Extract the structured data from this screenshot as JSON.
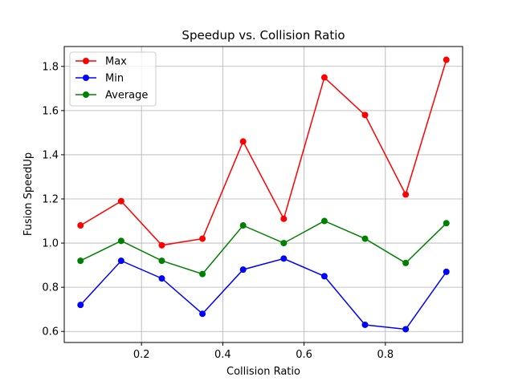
{
  "chart_data": {
    "type": "line",
    "title": "Speedup vs. Collision Ratio",
    "xlabel": "Collision Ratio",
    "ylabel": "Fusion SpeedUp",
    "x": [
      0.05,
      0.15,
      0.25,
      0.35,
      0.45,
      0.55,
      0.65,
      0.75,
      0.85,
      0.95
    ],
    "xlim": [
      0.01,
      0.99
    ],
    "ylim": [
      0.55,
      1.89
    ],
    "xticks": [
      0.2,
      0.4,
      0.6,
      0.8
    ],
    "xtick_labels": [
      "0.2",
      "0.4",
      "0.6",
      "0.8"
    ],
    "yticks": [
      0.6,
      0.8,
      1.0,
      1.2,
      1.4,
      1.6,
      1.8
    ],
    "ytick_labels": [
      "0.6",
      "0.8",
      "1.0",
      "1.2",
      "1.4",
      "1.6",
      "1.8"
    ],
    "grid": true,
    "legend_position": "top-left",
    "series": [
      {
        "name": "Max",
        "color": "#ff0000",
        "marker": "circle",
        "values": [
          1.08,
          1.19,
          0.99,
          1.02,
          1.46,
          1.11,
          1.75,
          1.58,
          1.22,
          1.83
        ]
      },
      {
        "name": "Min",
        "color": "#0000ff",
        "marker": "circle",
        "values": [
          0.72,
          0.92,
          0.84,
          0.68,
          0.88,
          0.93,
          0.85,
          0.63,
          0.61,
          0.87
        ]
      },
      {
        "name": "Average",
        "color": "#008000",
        "marker": "circle",
        "values": [
          0.92,
          1.01,
          0.92,
          0.86,
          1.08,
          1.0,
          1.1,
          1.02,
          0.91,
          1.09
        ]
      }
    ]
  }
}
